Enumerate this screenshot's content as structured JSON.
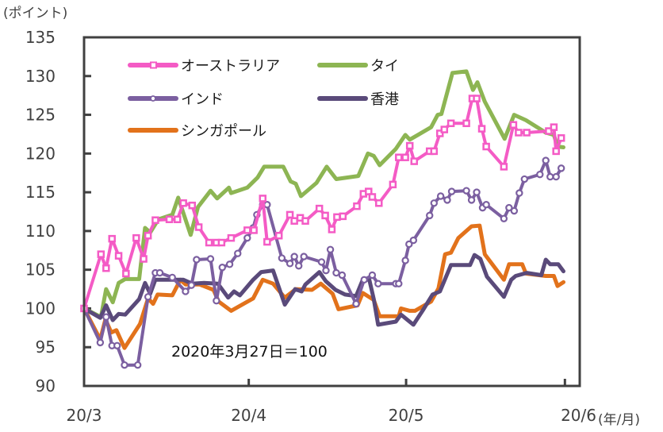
{
  "chart_data": {
    "type": "line",
    "title": "",
    "ylabel": "(ポイント)",
    "xlabel": "(年/月)",
    "ylim": [
      90,
      135
    ],
    "yticks": [
      90,
      95,
      100,
      105,
      110,
      115,
      120,
      125,
      130,
      135
    ],
    "xlim": [
      0,
      67.2
    ],
    "x_unit": "trading-day index from 2020-03-27",
    "xticks": [
      {
        "x": 0,
        "label": "20/3"
      },
      {
        "x": 22.4,
        "label": "20/4"
      },
      {
        "x": 43.8,
        "label": "20/5"
      },
      {
        "x": 65.4,
        "label": "20/6"
      }
    ],
    "annotation": "2020年3月27日＝100",
    "legend_position": "top-left",
    "series": [
      {
        "name": "オーストラリア",
        "color": "#f45bc5",
        "marker": "square",
        "points": [
          [
            0,
            100
          ],
          [
            2.3,
            107
          ],
          [
            3,
            105.2
          ],
          [
            3.8,
            109
          ],
          [
            4.7,
            106.8
          ],
          [
            5.7,
            104.5
          ],
          [
            7.1,
            109.1
          ],
          [
            8.1,
            106.4
          ],
          [
            8.7,
            109.4
          ],
          [
            9.7,
            111.4
          ],
          [
            11.6,
            111.5
          ],
          [
            12.7,
            111.5
          ],
          [
            13.5,
            113.6
          ],
          [
            14.7,
            113.3
          ],
          [
            15.6,
            110.5
          ],
          [
            17,
            108.5
          ],
          [
            18,
            108.5
          ],
          [
            18.7,
            108.5
          ],
          [
            20,
            109.1
          ],
          [
            22.2,
            110.1
          ],
          [
            23.1,
            110.1
          ],
          [
            24.3,
            114.2
          ],
          [
            24.9,
            108.6
          ],
          [
            26.5,
            109.4
          ],
          [
            28,
            112.1
          ],
          [
            28.6,
            111.3
          ],
          [
            29.4,
            111.7
          ],
          [
            30.1,
            111.3
          ],
          [
            32.0,
            112.9
          ],
          [
            32.8,
            112.0
          ],
          [
            33.7,
            110.2
          ],
          [
            34.4,
            111.8
          ],
          [
            35.2,
            111.9
          ],
          [
            37.1,
            113.2
          ],
          [
            38,
            114.8
          ],
          [
            38.7,
            115.1
          ],
          [
            39.2,
            114.4
          ],
          [
            40.1,
            113.6
          ],
          [
            42.0,
            116.0
          ],
          [
            42.8,
            119.5
          ],
          [
            43.7,
            119.5
          ],
          [
            44.3,
            121.0
          ],
          [
            44.9,
            119.0
          ],
          [
            47,
            120.3
          ],
          [
            47.6,
            120.3
          ],
          [
            48.4,
            122.6
          ],
          [
            49,
            123.1
          ],
          [
            49.9,
            123.9
          ],
          [
            52,
            123.9
          ],
          [
            52.8,
            127.1
          ],
          [
            53.4,
            127.1
          ],
          [
            54.1,
            123.2
          ],
          [
            54.7,
            120.9
          ],
          [
            57.1,
            118.3
          ],
          [
            58.4,
            123.7
          ],
          [
            59.1,
            122.7
          ],
          [
            60.2,
            122.7
          ],
          [
            63.2,
            122.9
          ],
          [
            63.9,
            123.4
          ],
          [
            64.2,
            120.3
          ],
          [
            64.9,
            122.0
          ]
        ]
      },
      {
        "name": "タイ",
        "color": "#8db553",
        "marker": "none",
        "points": [
          [
            0,
            100
          ],
          [
            2.3,
            98.9
          ],
          [
            3,
            102.5
          ],
          [
            3.9,
            100.8
          ],
          [
            4.7,
            103.3
          ],
          [
            5.6,
            103.8
          ],
          [
            7.5,
            103.8
          ],
          [
            8.3,
            110.4
          ],
          [
            9,
            109.8
          ],
          [
            10.1,
            111.5
          ],
          [
            12,
            112.1
          ],
          [
            12.8,
            114.3
          ],
          [
            14.5,
            109.5
          ],
          [
            15.5,
            113.1
          ],
          [
            17.2,
            115.2
          ],
          [
            18.1,
            114.2
          ],
          [
            19.7,
            115.6
          ],
          [
            20,
            114.9
          ],
          [
            22.2,
            115.6
          ],
          [
            23.6,
            116.9
          ],
          [
            24.5,
            118.3
          ],
          [
            27.1,
            118.3
          ],
          [
            28.1,
            116.4
          ],
          [
            28.8,
            116.1
          ],
          [
            29.5,
            114.5
          ],
          [
            31.6,
            116.2
          ],
          [
            33,
            118.3
          ],
          [
            34.3,
            116.7
          ],
          [
            37.3,
            117.1
          ],
          [
            38.6,
            120.0
          ],
          [
            39.4,
            119.7
          ],
          [
            40.2,
            118.5
          ],
          [
            42.4,
            120.6
          ],
          [
            43.7,
            122.4
          ],
          [
            44.3,
            121.8
          ],
          [
            45.4,
            122.4
          ],
          [
            47.2,
            123.4
          ],
          [
            48.1,
            125.0
          ],
          [
            48.6,
            125.1
          ],
          [
            50.1,
            130.4
          ],
          [
            52,
            130.6
          ],
          [
            52.9,
            128.2
          ],
          [
            53.5,
            129.2
          ],
          [
            54.5,
            126.7
          ],
          [
            57.2,
            121.9
          ],
          [
            58.5,
            125.0
          ],
          [
            60.1,
            124.3
          ],
          [
            62.8,
            122.7
          ],
          [
            63.9,
            122.4
          ],
          [
            64.4,
            120.9
          ],
          [
            65.2,
            120.8
          ]
        ]
      },
      {
        "name": "インド",
        "color": "#7b5fa0",
        "marker": "circle",
        "points": [
          [
            0,
            100
          ],
          [
            2.2,
            95.6
          ],
          [
            3,
            98.9
          ],
          [
            3.8,
            95.2
          ],
          [
            4.5,
            95.2
          ],
          [
            5.5,
            92.7
          ],
          [
            7.3,
            92.7
          ],
          [
            8.7,
            101.5
          ],
          [
            9.7,
            104.6
          ],
          [
            10.3,
            104.6
          ],
          [
            12,
            104.0
          ],
          [
            13.8,
            102.2
          ],
          [
            14.6,
            103.0
          ],
          [
            15.3,
            106.3
          ],
          [
            17.2,
            106.4
          ],
          [
            18,
            101.0
          ],
          [
            18.8,
            105.3
          ],
          [
            19.8,
            105.7
          ],
          [
            20.9,
            107.1
          ],
          [
            22.2,
            109.1
          ],
          [
            23,
            110.4
          ],
          [
            23.5,
            112.1
          ],
          [
            24.3,
            113.4
          ],
          [
            24.9,
            113.4
          ],
          [
            26.9,
            106.5
          ],
          [
            28,
            105.8
          ],
          [
            28.6,
            106.7
          ],
          [
            29.2,
            105.5
          ],
          [
            29.9,
            106.7
          ],
          [
            32.3,
            106.0
          ],
          [
            32.9,
            104.9
          ],
          [
            33.5,
            107.6
          ],
          [
            34.3,
            104.6
          ],
          [
            35.1,
            104.3
          ],
          [
            37,
            100.6
          ],
          [
            38.1,
            103.7
          ],
          [
            39.2,
            104.3
          ],
          [
            40,
            103.2
          ],
          [
            42.4,
            103.2
          ],
          [
            42.8,
            103.2
          ],
          [
            43.7,
            106.2
          ],
          [
            44.2,
            108.3
          ],
          [
            44.8,
            108.8
          ],
          [
            47,
            112.0
          ],
          [
            47.6,
            113.6
          ],
          [
            48.5,
            114.5
          ],
          [
            49.4,
            114.0
          ],
          [
            50,
            115.1
          ],
          [
            52,
            115.2
          ],
          [
            52.7,
            114.0
          ],
          [
            53.4,
            115.0
          ],
          [
            54.2,
            113.0
          ],
          [
            54.7,
            113.4
          ],
          [
            57.1,
            111.6
          ],
          [
            57.8,
            113.0
          ],
          [
            58.5,
            112.6
          ],
          [
            59.2,
            114.9
          ],
          [
            59.9,
            116.7
          ],
          [
            62,
            117.3
          ],
          [
            62.8,
            119.1
          ],
          [
            63.4,
            117.0
          ],
          [
            64.2,
            117.0
          ],
          [
            64.9,
            118.1
          ]
        ]
      },
      {
        "name": "香港",
        "color": "#5a4a7a",
        "marker": "none",
        "points": [
          [
            0,
            100
          ],
          [
            2.2,
            98.8
          ],
          [
            3,
            100.4
          ],
          [
            3.9,
            98.5
          ],
          [
            4.7,
            99.3
          ],
          [
            5.6,
            99.2
          ],
          [
            7.5,
            101.2
          ],
          [
            8.3,
            103.3
          ],
          [
            9,
            101.9
          ],
          [
            9.7,
            103.7
          ],
          [
            13.5,
            103.7
          ],
          [
            14.7,
            103.2
          ],
          [
            16.3,
            103.3
          ],
          [
            18.2,
            103.2
          ],
          [
            19.6,
            101.4
          ],
          [
            20.4,
            102.2
          ],
          [
            21.2,
            101.7
          ],
          [
            23,
            103.7
          ],
          [
            24.1,
            104.7
          ],
          [
            25.7,
            104.9
          ],
          [
            27.3,
            100.5
          ],
          [
            28.7,
            102.5
          ],
          [
            29.6,
            102.2
          ],
          [
            30.1,
            103.1
          ],
          [
            32,
            104.7
          ],
          [
            32.9,
            103.5
          ],
          [
            34.2,
            102.4
          ],
          [
            35.5,
            101.8
          ],
          [
            37,
            101.6
          ],
          [
            37.9,
            103.7
          ],
          [
            38.8,
            103.7
          ],
          [
            39.4,
            101.2
          ],
          [
            40,
            97.9
          ],
          [
            42.4,
            98.3
          ],
          [
            43.1,
            99.2
          ],
          [
            44.8,
            97.9
          ],
          [
            46.1,
            99.8
          ],
          [
            47.4,
            101.8
          ],
          [
            48.4,
            102.2
          ],
          [
            49.9,
            105.6
          ],
          [
            52.5,
            105.6
          ],
          [
            53.1,
            106.9
          ],
          [
            53.9,
            106.4
          ],
          [
            54.8,
            104.1
          ],
          [
            57.1,
            101.5
          ],
          [
            58.1,
            103.7
          ],
          [
            58.7,
            104.2
          ],
          [
            60.2,
            104.6
          ],
          [
            62.2,
            104.3
          ],
          [
            62.8,
            106.3
          ],
          [
            63.4,
            105.7
          ],
          [
            64.5,
            105.7
          ],
          [
            65.2,
            104.8
          ]
        ]
      },
      {
        "name": "シンガポール",
        "color": "#e2721b",
        "marker": "none",
        "points": [
          [
            0,
            100
          ],
          [
            2.2,
            96.0
          ],
          [
            2.9,
            98.6
          ],
          [
            3.7,
            96.9
          ],
          [
            4.4,
            97.2
          ],
          [
            5.5,
            94.9
          ],
          [
            7.6,
            98.0
          ],
          [
            8.7,
            101.3
          ],
          [
            9.4,
            100.6
          ],
          [
            10,
            101.8
          ],
          [
            12,
            101.7
          ],
          [
            13.1,
            103.7
          ],
          [
            13.8,
            103.1
          ],
          [
            15.7,
            103.1
          ],
          [
            17.6,
            102.4
          ],
          [
            18.3,
            100.9
          ],
          [
            20,
            99.7
          ],
          [
            23,
            101.3
          ],
          [
            24.3,
            103.7
          ],
          [
            25.7,
            103.2
          ],
          [
            27.3,
            101.4
          ],
          [
            28.8,
            102.5
          ],
          [
            31,
            102.4
          ],
          [
            32.2,
            103.2
          ],
          [
            33.8,
            101.9
          ],
          [
            34.6,
            99.9
          ],
          [
            37.2,
            100.4
          ],
          [
            37.9,
            102.0
          ],
          [
            39.4,
            101.1
          ],
          [
            40.2,
            99.0
          ],
          [
            42.8,
            99.0
          ],
          [
            43.1,
            100.0
          ],
          [
            44.3,
            99.7
          ],
          [
            45,
            99.7
          ],
          [
            47.2,
            100.9
          ],
          [
            48.2,
            102.6
          ],
          [
            49.1,
            107.0
          ],
          [
            49.9,
            107.2
          ],
          [
            50.9,
            109.1
          ],
          [
            52.7,
            110.6
          ],
          [
            53.8,
            110.7
          ],
          [
            54.5,
            107.0
          ],
          [
            57.1,
            103.7
          ],
          [
            57.8,
            105.7
          ],
          [
            59.6,
            105.7
          ],
          [
            60.1,
            104.5
          ],
          [
            62.8,
            104.2
          ],
          [
            63.9,
            104.2
          ],
          [
            64.4,
            102.9
          ],
          [
            65.2,
            103.4
          ]
        ]
      }
    ]
  }
}
